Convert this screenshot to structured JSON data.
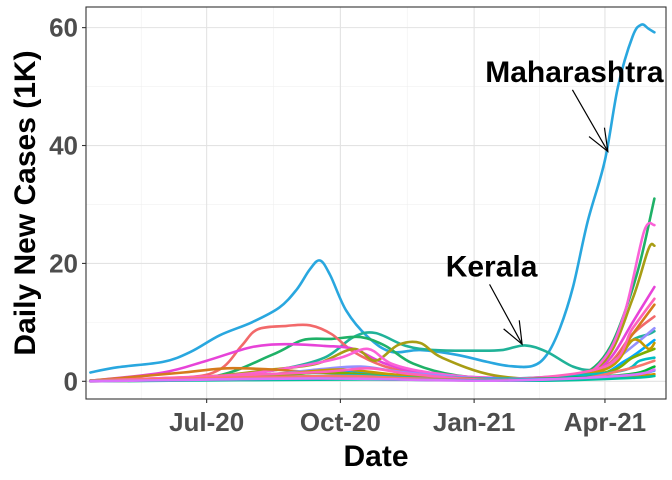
{
  "chart_data": {
    "type": "line",
    "xlabel": "Date",
    "ylabel": "Daily New Cases (1K)",
    "x_ticks": [
      "Jul-20",
      "Oct-20",
      "Jan-21",
      "Apr-21"
    ],
    "x_tick_dates": [
      "2020-07-01",
      "2020-10-01",
      "2021-01-01",
      "2021-04-01"
    ],
    "xlim": [
      "2020-04-09",
      "2021-05-13"
    ],
    "y_ticks": [
      0,
      20,
      40,
      60
    ],
    "ylim": [
      -3,
      63.5
    ],
    "grid": true,
    "legend": "none",
    "annotations": [
      {
        "text": "Maharashtra",
        "label_at": {
          "x": "2021-03-11",
          "y": 52.5
        },
        "arrow_to": {
          "x": "2021-04-03",
          "y": 39
        }
      },
      {
        "text": "Kerala",
        "label_at": {
          "x": "2021-01-13",
          "y": 19.5
        },
        "arrow_to": {
          "x": "2021-02-03",
          "y": 6.3
        }
      }
    ],
    "series": [
      {
        "color": "#29a7df",
        "points": [
          [
            "2020-04-12",
            1.5
          ],
          [
            "2020-05-01",
            2.4
          ],
          [
            "2020-06-01",
            3.3
          ],
          [
            "2020-06-20",
            5.0
          ],
          [
            "2020-07-10",
            7.8
          ],
          [
            "2020-08-01",
            10.0
          ],
          [
            "2020-08-20",
            12.5
          ],
          [
            "2020-09-01",
            15.6
          ],
          [
            "2020-09-10",
            19.0
          ],
          [
            "2020-09-17",
            20.5
          ],
          [
            "2020-09-24",
            18.0
          ],
          [
            "2020-10-05",
            12.0
          ],
          [
            "2020-10-20",
            7.5
          ],
          [
            "2020-11-05",
            5.0
          ],
          [
            "2020-11-25",
            5.3
          ],
          [
            "2020-12-20",
            4.5
          ],
          [
            "2021-01-10",
            3.3
          ],
          [
            "2021-01-25",
            2.6
          ],
          [
            "2021-02-10",
            2.6
          ],
          [
            "2021-02-20",
            4.5
          ],
          [
            "2021-03-01",
            9.0
          ],
          [
            "2021-03-10",
            16.0
          ],
          [
            "2021-03-20",
            27.0
          ],
          [
            "2021-04-01",
            37.5
          ],
          [
            "2021-04-10",
            50.0
          ],
          [
            "2021-04-20",
            58.5
          ],
          [
            "2021-04-26",
            60.5
          ],
          [
            "2021-05-01",
            59.8
          ],
          [
            "2021-05-05",
            59.2
          ]
        ]
      },
      {
        "color": "#20b298",
        "points": [
          [
            "2020-04-12",
            0.1
          ],
          [
            "2020-06-01",
            0.3
          ],
          [
            "2020-07-15",
            1.0
          ],
          [
            "2020-08-20",
            2.0
          ],
          [
            "2020-09-20",
            4.0
          ],
          [
            "2020-10-10",
            7.5
          ],
          [
            "2020-10-25",
            8.2
          ],
          [
            "2020-11-15",
            6.0
          ],
          [
            "2020-12-05",
            5.3
          ],
          [
            "2021-01-01",
            5.2
          ],
          [
            "2021-01-20",
            5.3
          ],
          [
            "2021-02-05",
            6.1
          ],
          [
            "2021-02-20",
            5.0
          ],
          [
            "2021-03-10",
            2.5
          ],
          [
            "2021-03-25",
            2.0
          ],
          [
            "2021-04-10",
            4.0
          ],
          [
            "2021-04-20",
            7.0
          ],
          [
            "2021-05-01",
            8.0
          ],
          [
            "2021-05-05",
            8.5
          ]
        ]
      },
      {
        "color": "#1fb167",
        "points": [
          [
            "2020-04-12",
            0.1
          ],
          [
            "2020-07-01",
            0.6
          ],
          [
            "2020-08-15",
            4.5
          ],
          [
            "2020-09-05",
            7.0
          ],
          [
            "2020-09-25",
            7.2
          ],
          [
            "2020-10-15",
            7.5
          ],
          [
            "2020-11-01",
            6.0
          ],
          [
            "2020-11-20",
            3.0
          ],
          [
            "2020-12-20",
            1.0
          ],
          [
            "2021-02-01",
            0.4
          ],
          [
            "2021-03-10",
            0.8
          ],
          [
            "2021-03-25",
            2.5
          ],
          [
            "2021-04-05",
            6.0
          ],
          [
            "2021-04-15",
            12.0
          ],
          [
            "2021-04-25",
            20.0
          ],
          [
            "2021-05-05",
            31.0
          ]
        ]
      },
      {
        "color": "#f2696a",
        "points": [
          [
            "2020-04-12",
            0.1
          ],
          [
            "2020-06-15",
            0.6
          ],
          [
            "2020-07-10",
            2.0
          ],
          [
            "2020-07-25",
            6.0
          ],
          [
            "2020-08-05",
            8.8
          ],
          [
            "2020-08-25",
            9.4
          ],
          [
            "2020-09-10",
            9.5
          ],
          [
            "2020-09-25",
            8.0
          ],
          [
            "2020-10-10",
            5.0
          ],
          [
            "2020-11-01",
            2.5
          ],
          [
            "2020-12-01",
            1.0
          ],
          [
            "2021-01-15",
            0.4
          ],
          [
            "2021-03-01",
            0.6
          ],
          [
            "2021-04-01",
            2.5
          ],
          [
            "2021-04-20",
            8.0
          ],
          [
            "2021-05-05",
            11.0
          ]
        ]
      },
      {
        "color": "#e743d8",
        "points": [
          [
            "2020-04-12",
            0.1
          ],
          [
            "2020-06-01",
            1.5
          ],
          [
            "2020-07-01",
            3.5
          ],
          [
            "2020-08-01",
            5.8
          ],
          [
            "2020-08-25",
            6.3
          ],
          [
            "2020-09-20",
            6.0
          ],
          [
            "2020-10-10",
            5.5
          ],
          [
            "2020-11-01",
            3.0
          ],
          [
            "2020-12-01",
            1.2
          ],
          [
            "2021-01-15",
            0.6
          ],
          [
            "2021-03-01",
            0.5
          ],
          [
            "2021-03-20",
            1.0
          ],
          [
            "2021-04-05",
            4.0
          ],
          [
            "2021-04-20",
            10.0
          ],
          [
            "2021-05-05",
            16.0
          ]
        ]
      },
      {
        "color": "#a89d14",
        "points": [
          [
            "2020-04-12",
            0.1
          ],
          [
            "2020-07-01",
            0.8
          ],
          [
            "2020-08-15",
            2.0
          ],
          [
            "2020-09-15",
            3.0
          ],
          [
            "2020-10-10",
            5.5
          ],
          [
            "2020-10-25",
            3.5
          ],
          [
            "2020-11-10",
            6.2
          ],
          [
            "2020-11-25",
            6.5
          ],
          [
            "2020-12-10",
            4.0
          ],
          [
            "2021-01-15",
            1.0
          ],
          [
            "2021-03-01",
            0.6
          ],
          [
            "2021-04-01",
            3.5
          ],
          [
            "2021-04-20",
            14.0
          ],
          [
            "2021-05-01",
            22.5
          ],
          [
            "2021-05-05",
            23.0
          ]
        ]
      },
      {
        "color": "#fb61d7",
        "points": [
          [
            "2020-04-12",
            0.1
          ],
          [
            "2020-07-15",
            1.0
          ],
          [
            "2020-09-01",
            2.5
          ],
          [
            "2020-10-01",
            4.0
          ],
          [
            "2020-10-20",
            5.5
          ],
          [
            "2020-11-05",
            3.0
          ],
          [
            "2020-12-01",
            1.5
          ],
          [
            "2021-01-15",
            0.5
          ],
          [
            "2021-03-10",
            0.6
          ],
          [
            "2021-04-01",
            4.0
          ],
          [
            "2021-04-15",
            12.0
          ],
          [
            "2021-04-28",
            25.5
          ],
          [
            "2021-05-05",
            26.5
          ]
        ]
      },
      {
        "color": "#d57b1c",
        "points": [
          [
            "2020-04-12",
            0.1
          ],
          [
            "2020-06-15",
            1.5
          ],
          [
            "2020-07-15",
            2.2
          ],
          [
            "2020-08-15",
            2.0
          ],
          [
            "2020-09-15",
            1.5
          ],
          [
            "2020-11-01",
            1.0
          ],
          [
            "2021-01-01",
            0.4
          ],
          [
            "2021-03-10",
            0.6
          ],
          [
            "2021-04-05",
            3.0
          ],
          [
            "2021-04-20",
            8.0
          ],
          [
            "2021-05-05",
            13.0
          ]
        ]
      },
      {
        "color": "#9590ff",
        "points": [
          [
            "2020-04-12",
            0.1
          ],
          [
            "2020-08-01",
            1.0
          ],
          [
            "2020-09-15",
            2.0
          ],
          [
            "2020-10-15",
            2.5
          ],
          [
            "2020-11-15",
            1.5
          ],
          [
            "2021-01-15",
            0.4
          ],
          [
            "2021-03-20",
            1.0
          ],
          [
            "2021-04-10",
            4.0
          ],
          [
            "2021-05-05",
            9.0
          ]
        ]
      },
      {
        "color": "#00a8ff",
        "points": [
          [
            "2020-04-12",
            0.1
          ],
          [
            "2020-08-15",
            1.0
          ],
          [
            "2020-10-01",
            1.8
          ],
          [
            "2020-11-01",
            1.2
          ],
          [
            "2021-01-01",
            0.5
          ],
          [
            "2021-03-20",
            0.8
          ],
          [
            "2021-04-15",
            3.5
          ],
          [
            "2021-05-05",
            7.0
          ]
        ]
      },
      {
        "color": "#7cae00",
        "points": [
          [
            "2020-04-12",
            0.1
          ],
          [
            "2020-08-01",
            0.8
          ],
          [
            "2020-09-20",
            1.5
          ],
          [
            "2020-11-01",
            1.0
          ],
          [
            "2021-02-01",
            0.3
          ],
          [
            "2021-04-01",
            1.5
          ],
          [
            "2021-04-20",
            4.0
          ],
          [
            "2021-05-05",
            5.5
          ]
        ]
      },
      {
        "color": "#c49a00",
        "points": [
          [
            "2020-04-12",
            0.1
          ],
          [
            "2020-08-15",
            1.2
          ],
          [
            "2020-10-01",
            2.0
          ],
          [
            "2020-11-15",
            1.0
          ],
          [
            "2021-02-01",
            0.3
          ],
          [
            "2021-04-01",
            2.0
          ],
          [
            "2021-04-20",
            7.0
          ],
          [
            "2021-05-01",
            5.5
          ],
          [
            "2021-05-05",
            6.5
          ]
        ]
      },
      {
        "color": "#00bfc4",
        "points": [
          [
            "2020-04-12",
            0.1
          ],
          [
            "2020-09-01",
            0.8
          ],
          [
            "2020-10-15",
            1.0
          ],
          [
            "2021-01-01",
            0.3
          ],
          [
            "2021-04-05",
            1.5
          ],
          [
            "2021-04-25",
            3.5
          ],
          [
            "2021-05-05",
            4.0
          ]
        ]
      },
      {
        "color": "#ff62bc",
        "points": [
          [
            "2020-04-12",
            0.1
          ],
          [
            "2020-09-10",
            1.5
          ],
          [
            "2020-10-20",
            2.2
          ],
          [
            "2020-11-20",
            1.2
          ],
          [
            "2021-01-20",
            0.3
          ],
          [
            "2021-04-01",
            2.5
          ],
          [
            "2021-04-20",
            9.0
          ],
          [
            "2021-05-05",
            14.0
          ]
        ]
      },
      {
        "color": "#00ba38",
        "points": [
          [
            "2020-04-12",
            0.1
          ],
          [
            "2020-10-01",
            0.6
          ],
          [
            "2021-01-01",
            0.2
          ],
          [
            "2021-04-10",
            1.0
          ],
          [
            "2021-05-05",
            2.5
          ]
        ]
      },
      {
        "color": "#619cff",
        "points": [
          [
            "2020-04-12",
            0.1
          ],
          [
            "2020-09-01",
            0.5
          ],
          [
            "2021-01-01",
            0.2
          ],
          [
            "2021-04-10",
            0.8
          ],
          [
            "2021-05-05",
            1.8
          ]
        ]
      },
      {
        "color": "#f8766d",
        "points": [
          [
            "2020-04-12",
            0.1
          ],
          [
            "2020-09-20",
            0.9
          ],
          [
            "2020-11-20",
            0.5
          ],
          [
            "2021-03-01",
            0.2
          ],
          [
            "2021-04-15",
            2.0
          ],
          [
            "2021-05-05",
            3.5
          ]
        ]
      },
      {
        "color": "#d39200",
        "points": [
          [
            "2020-04-12",
            0.0
          ],
          [
            "2020-10-01",
            0.4
          ],
          [
            "2021-02-01",
            0.1
          ],
          [
            "2021-04-20",
            0.9
          ],
          [
            "2021-05-05",
            1.2
          ]
        ]
      },
      {
        "color": "#00c19f",
        "points": [
          [
            "2020-04-12",
            0.0
          ],
          [
            "2020-10-15",
            0.3
          ],
          [
            "2021-02-15",
            0.1
          ],
          [
            "2021-04-20",
            0.6
          ],
          [
            "2021-05-05",
            0.9
          ]
        ]
      },
      {
        "color": "#db72fb",
        "points": [
          [
            "2020-04-12",
            0.0
          ],
          [
            "2020-09-15",
            0.5
          ],
          [
            "2021-01-15",
            0.1
          ],
          [
            "2021-04-15",
            1.0
          ],
          [
            "2021-05-05",
            2.0
          ]
        ]
      }
    ]
  }
}
